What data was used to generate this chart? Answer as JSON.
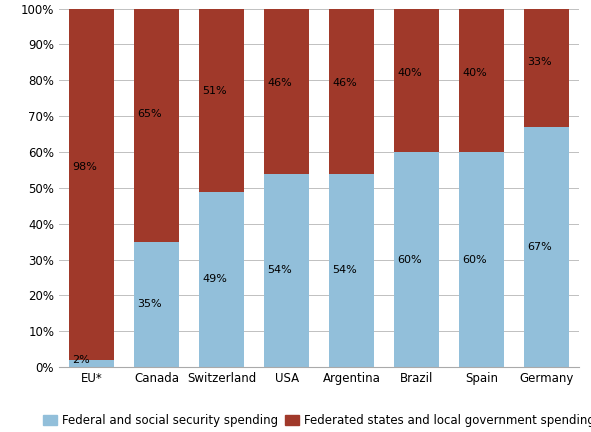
{
  "categories": [
    "EU*",
    "Canada",
    "Switzerland",
    "USA",
    "Argentina",
    "Brazil",
    "Spain",
    "Germany"
  ],
  "federal_values": [
    2,
    35,
    49,
    54,
    54,
    60,
    60,
    67
  ],
  "federated_values": [
    98,
    65,
    51,
    46,
    46,
    40,
    40,
    33
  ],
  "federal_color": "#92BFDA",
  "federated_color": "#A0392A",
  "federal_label": "Federal and social security spending",
  "federated_label": "Federated states and local government spending",
  "ylim": [
    0,
    100
  ],
  "ytick_labels": [
    "0%",
    "10%",
    "20%",
    "30%",
    "40%",
    "50%",
    "60%",
    "70%",
    "80%",
    "90%",
    "100%"
  ],
  "ytick_values": [
    0,
    10,
    20,
    30,
    40,
    50,
    60,
    70,
    80,
    90,
    100
  ],
  "bar_width": 0.7,
  "background_color": "#FFFFFF",
  "grid_color": "#C0C0C0",
  "font_size_labels": 8.0,
  "font_size_ticks": 8.5,
  "font_size_legend": 8.5
}
